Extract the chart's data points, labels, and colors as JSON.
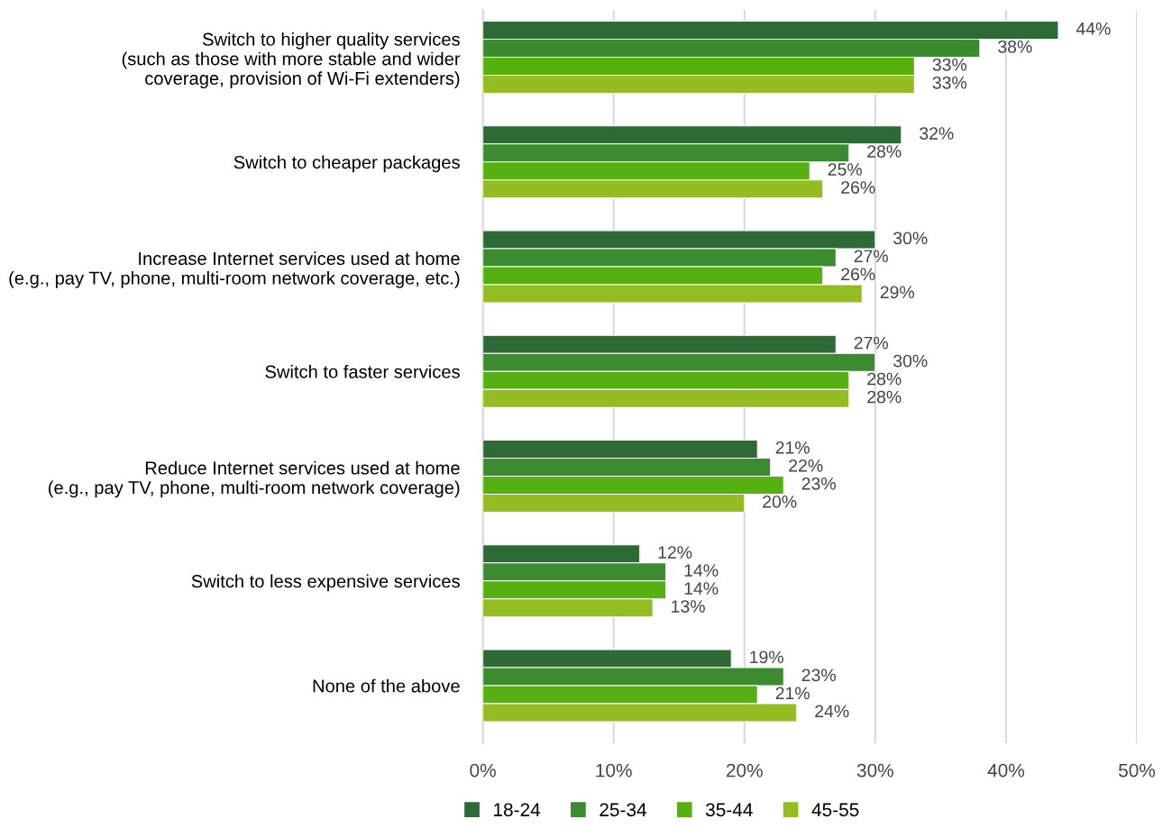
{
  "chart_data": {
    "type": "bar",
    "orientation": "horizontal",
    "categories": [
      "Switch to higher quality services\n(such as those with more stable and wider\ncoverage, provision of Wi-Fi extenders)",
      "Switch to cheaper packages",
      "Increase Internet services used at home\n(e.g., pay TV, phone, multi-room network coverage, etc.)",
      "Switch to faster services",
      "Reduce Internet services used at home\n(e.g., pay TV, phone, multi-room network coverage)",
      "Switch to less expensive services",
      "None of the above"
    ],
    "series": [
      {
        "name": "18-24",
        "color": "#2d6a35",
        "values": [
          44,
          32,
          30,
          27,
          21,
          12,
          19
        ],
        "value_labels": [
          "44%",
          "32%",
          "30%",
          "27%",
          "21%",
          "12%",
          "19%"
        ]
      },
      {
        "name": "25-34",
        "color": "#3d8b30",
        "values": [
          38,
          28,
          27,
          30,
          22,
          14,
          23
        ],
        "value_labels": [
          "38%",
          "28%",
          "27%",
          "30%",
          "22%",
          "14%",
          "23%"
        ]
      },
      {
        "name": "35-44",
        "color": "#56b012",
        "values": [
          33,
          25,
          26,
          28,
          23,
          14,
          21
        ],
        "value_labels": [
          "33%",
          "25%",
          "26%",
          "28%",
          "23%",
          "14%",
          "21%"
        ]
      },
      {
        "name": "45-55",
        "color": "#93bd22",
        "values": [
          33,
          26,
          29,
          28,
          20,
          13,
          24
        ],
        "value_labels": [
          "33%",
          "26%",
          "29%",
          "28%",
          "20%",
          "13%",
          "24%"
        ]
      }
    ],
    "xlim": [
      0,
      50
    ],
    "xticks": [
      {
        "value": 0,
        "label": "0%"
      },
      {
        "value": 10,
        "label": "10%"
      },
      {
        "value": 20,
        "label": "20%"
      },
      {
        "value": 30,
        "label": "30%"
      },
      {
        "value": 40,
        "label": "40%"
      },
      {
        "value": 50,
        "label": "50%"
      }
    ],
    "grid": "x",
    "legend": "bottom"
  }
}
